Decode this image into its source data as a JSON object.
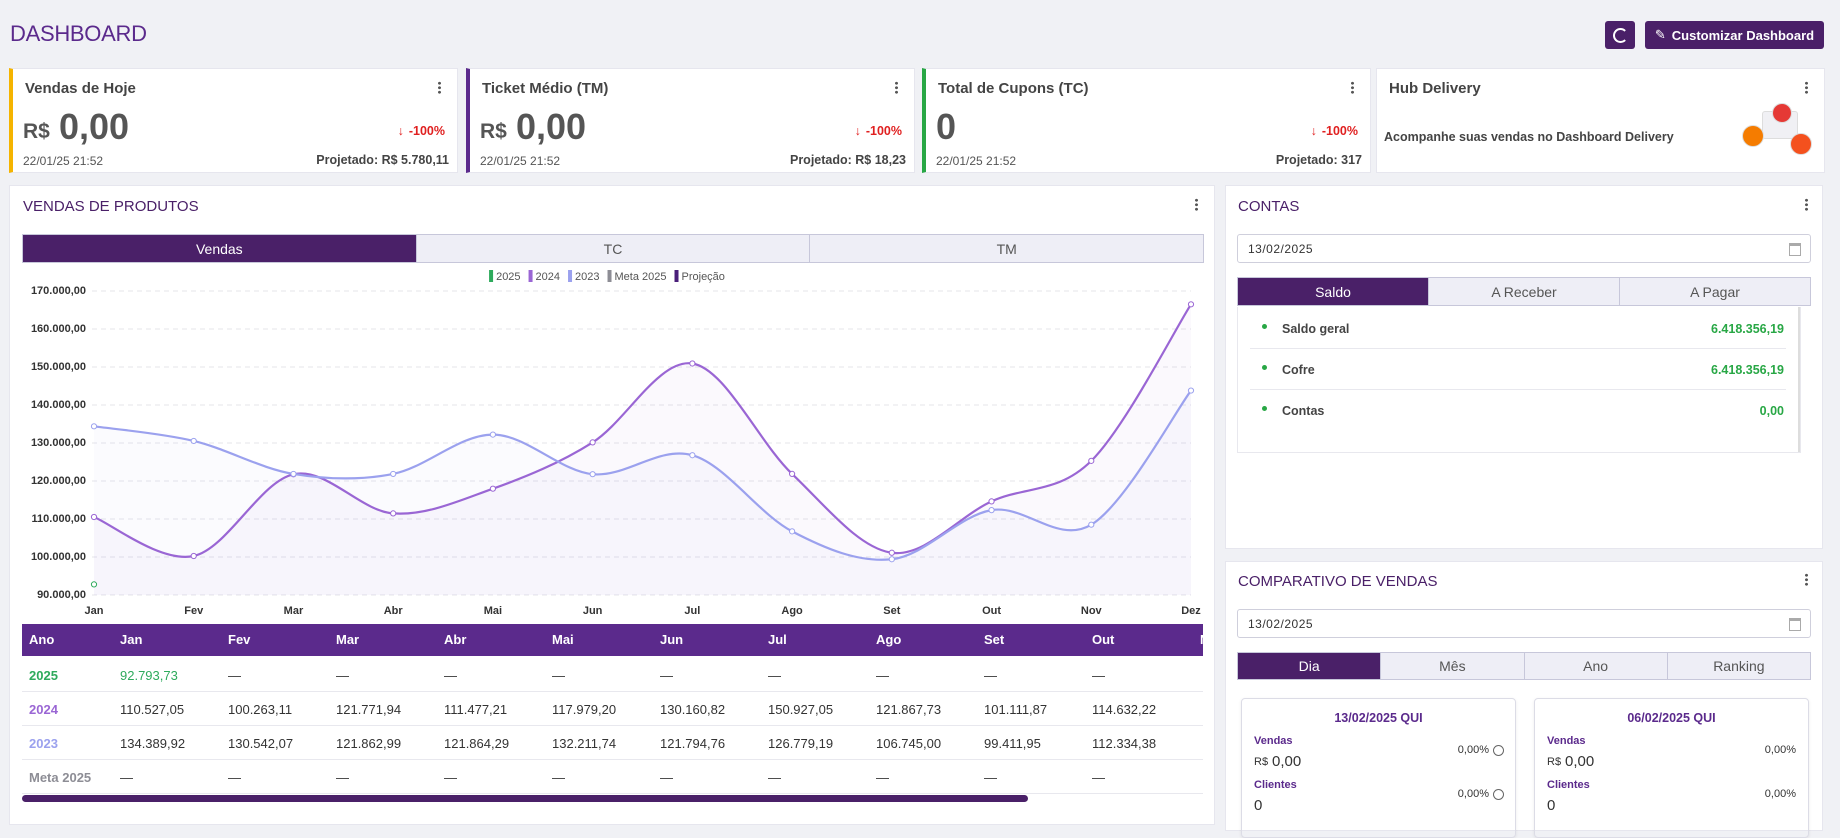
{
  "header": {
    "title": "DASHBOARD",
    "button": "Customizar Dashboard"
  },
  "cards": [
    {
      "title": "Vendas de Hoje",
      "currency": "R$",
      "value": "0,00",
      "change": "-100%",
      "date": "22/01/25 21:52",
      "projected": "Projetado: R$ 5.780,11",
      "color": "#f5b400"
    },
    {
      "title": "Ticket Médio (TM)",
      "currency": "R$",
      "value": "0,00",
      "change": "-100%",
      "date": "22/01/25 21:52",
      "projected": "Projetado: R$ 18,23",
      "color": "#5b2a8c"
    },
    {
      "title": "Total de Cupons (TC)",
      "value": "0",
      "change": "-100%",
      "date": "22/01/25 21:52",
      "projected": "Projetado: 317",
      "color": "#28a745"
    },
    {
      "title": "Hub Delivery",
      "text": "Acompanhe suas vendas no Dashboard Delivery"
    }
  ],
  "chart_data": {
    "type": "line",
    "title": "VENDAS DE PRODUTOS",
    "tabs": [
      "Vendas",
      "TC",
      "TM"
    ],
    "table_header": "Ano",
    "categories": [
      "Jan",
      "Fev",
      "Mar",
      "Abr",
      "Mai",
      "Jun",
      "Jul",
      "Ago",
      "Set",
      "Out",
      "Nov",
      "Dez"
    ],
    "series": [
      {
        "name": "2025",
        "color": "#2eaa5c",
        "values": [
          92793.73,
          null,
          null,
          null,
          null,
          null,
          null,
          null,
          null,
          null,
          null,
          null
        ],
        "value_labels": [
          "92.793,73",
          "—",
          "—",
          "—",
          "—",
          "—",
          "—",
          "—",
          "—",
          "—",
          null,
          null
        ]
      },
      {
        "name": "2024",
        "color": "#9a66d4",
        "values": [
          110527.05,
          100263.11,
          121771.94,
          111477.21,
          117979.2,
          130160.82,
          150927.05,
          121867.73,
          101111.87,
          114632.22,
          125300,
          166500
        ],
        "value_labels": [
          "110.527,05",
          "100.263,11",
          "121.771,94",
          "111.477,21",
          "117.979,20",
          "130.160,82",
          "150.927,05",
          "121.867,73",
          "101.111,87",
          "114.632,22",
          null,
          null
        ]
      },
      {
        "name": "2023",
        "color": "#9ba1ee",
        "values": [
          134389.92,
          130542.07,
          121862.99,
          121864.29,
          132211.74,
          121794.76,
          126779.19,
          106745.0,
          99411.95,
          112334.38,
          108500,
          143800
        ],
        "value_labels": [
          "134.389,92",
          "130.542,07",
          "121.862,99",
          "121.864,29",
          "132.211,74",
          "121.794,76",
          "126.779,19",
          "106.745,00",
          "99.411,95",
          "112.334,38",
          null,
          null
        ]
      },
      {
        "name": "Meta 2025",
        "color": "#8d8d95",
        "values": [
          null,
          null,
          null,
          null,
          null,
          null,
          null,
          null,
          null,
          null,
          null,
          null
        ],
        "value_labels": [
          "—",
          "—",
          "—",
          "—",
          "—",
          "—",
          "—",
          "—",
          "—",
          "—",
          null,
          null
        ]
      },
      {
        "name": "Projeção",
        "color": "#4a1f7a",
        "values": [
          null,
          null,
          null,
          null,
          null,
          null,
          null,
          null,
          null,
          null,
          null,
          null
        ]
      }
    ],
    "ylim": [
      90000,
      170000
    ],
    "yticks": [
      {
        "value": 90000,
        "label": "90.000,00"
      },
      {
        "value": 100000,
        "label": "100.000,00"
      },
      {
        "value": 110000,
        "label": "110.000,00"
      },
      {
        "value": 120000,
        "label": "120.000,00"
      },
      {
        "value": 130000,
        "label": "130.000,00"
      },
      {
        "value": 140000,
        "label": "140.000,00"
      },
      {
        "value": 150000,
        "label": "150.000,00"
      },
      {
        "value": 160000,
        "label": "160.000,00"
      },
      {
        "value": 170000,
        "label": "170.000,00"
      }
    ],
    "grid": true
  },
  "contas": {
    "title": "CONTAS",
    "date": "13/02/2025",
    "tabs": [
      "Saldo",
      "A Receber",
      "A Pagar"
    ],
    "items": [
      {
        "label": "Saldo geral",
        "value": "6.418.356,19"
      },
      {
        "label": "Cofre",
        "value": "6.418.356,19"
      },
      {
        "label": "Contas",
        "value": "0,00"
      }
    ]
  },
  "comparativo": {
    "title": "COMPARATIVO DE VENDAS",
    "date": "13/02/2025",
    "tabs": [
      "Dia",
      "Mês",
      "Ano",
      "Ranking"
    ],
    "cards": [
      {
        "date": "13/02/2025 QUI",
        "vendas_label": "Vendas",
        "currency": "R$",
        "vendas": "0,00",
        "vendas_pct": "0,00%",
        "clientes_label": "Clientes",
        "clientes": "0",
        "clientes_pct": "0,00%"
      },
      {
        "date": "06/02/2025 QUI",
        "vendas_label": "Vendas",
        "currency": "R$",
        "vendas": "0,00",
        "vendas_pct": "0,00%",
        "clientes_label": "Clientes",
        "clientes": "0",
        "clientes_pct": "0,00%"
      }
    ]
  }
}
